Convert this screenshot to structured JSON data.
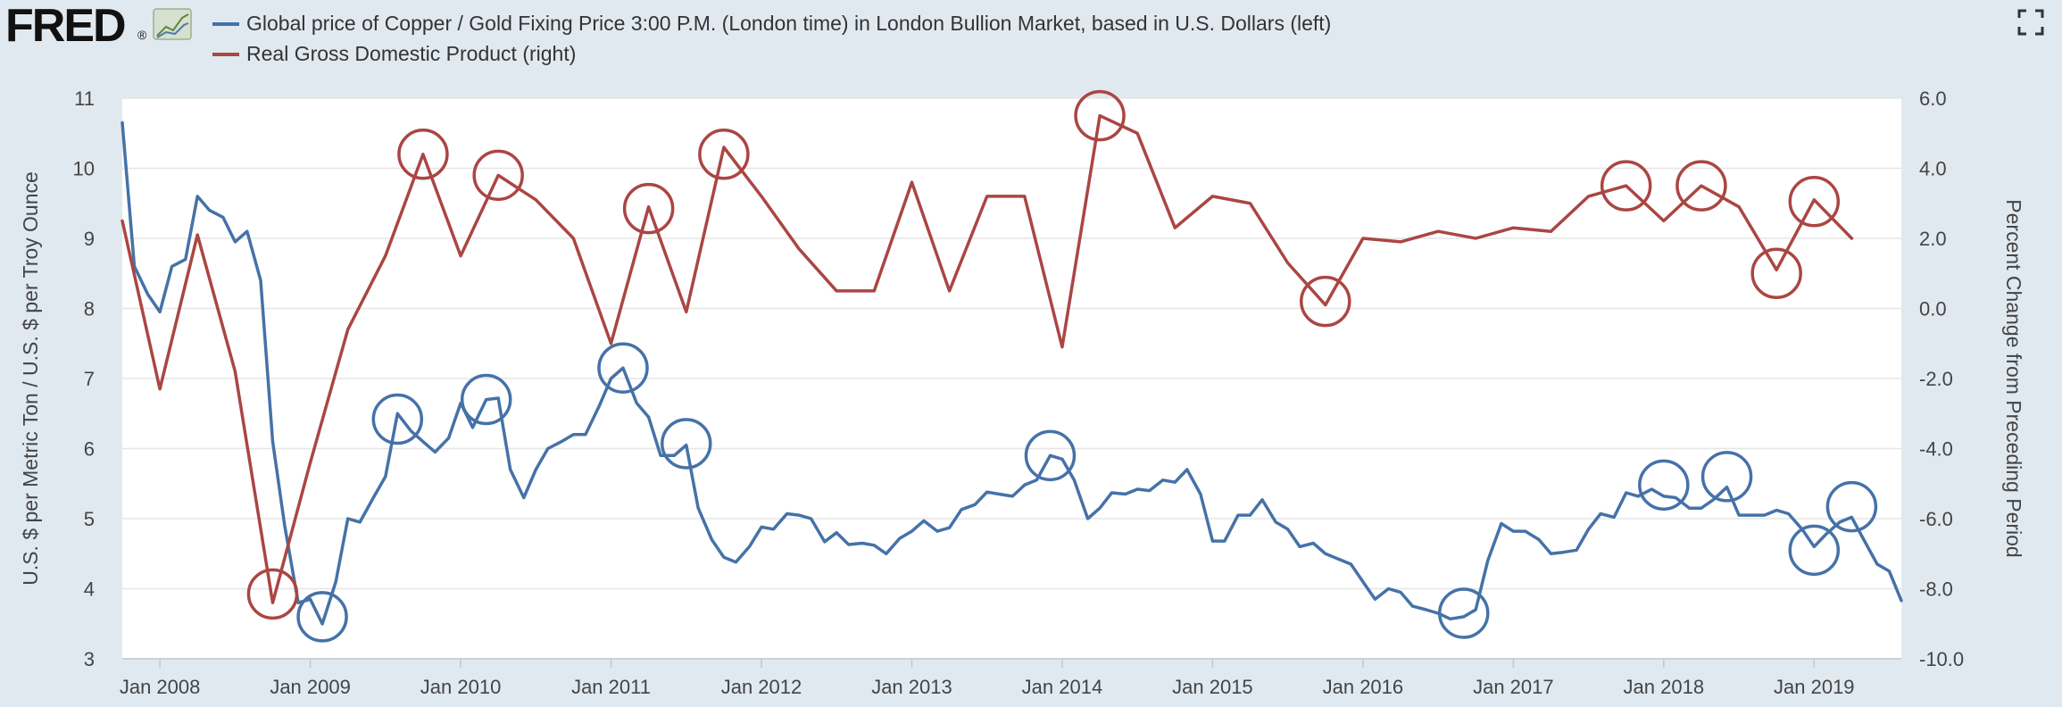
{
  "header": {
    "logo": "FRED",
    "logo_mark": "®"
  },
  "legend": [
    {
      "label": "Global price of Copper / Gold Fixing Price 3:00 P.M. (London time) in London Bullion Market, based in U.S. Dollars (left)",
      "color": "#4572a7"
    },
    {
      "label": "Real Gross Domestic Product (right)",
      "color": "#aa4643"
    }
  ],
  "chart_data": {
    "type": "line",
    "grid": true,
    "x_ticks": [
      "Jan 2008",
      "Jan 2009",
      "Jan 2010",
      "Jan 2011",
      "Jan 2012",
      "Jan 2013",
      "Jan 2014",
      "Jan 2015",
      "Jan 2016",
      "Jan 2017",
      "Jan 2018",
      "Jan 2019"
    ],
    "x_range": [
      2007.75,
      2019.58
    ],
    "left_axis": {
      "label": "U.S. $ per Metric Ton / U.S. $ per Troy Ounce",
      "range": [
        3,
        11
      ],
      "ticks": [
        "3",
        "4",
        "5",
        "6",
        "7",
        "8",
        "9",
        "10",
        "11"
      ]
    },
    "right_axis": {
      "label": "Percent Change from Preceding Period",
      "range": [
        -10,
        6
      ],
      "ticks": [
        "-10.0",
        "-8.0",
        "-6.0",
        "-4.0",
        "-2.0",
        "0.0",
        "2.0",
        "4.0",
        "6.0"
      ]
    },
    "series": [
      {
        "name": "Global price of Copper / Gold Fixing Price 3:00 P.M. (London time) in London Bullion Market, based in U.S. Dollars (left)",
        "axis": "left",
        "color": "#4572a7",
        "x": [
          2007.75,
          2007.83,
          2007.92,
          2008.0,
          2008.08,
          2008.17,
          2008.25,
          2008.33,
          2008.42,
          2008.5,
          2008.58,
          2008.67,
          2008.75,
          2008.83,
          2008.92,
          2009.0,
          2009.08,
          2009.17,
          2009.25,
          2009.33,
          2009.42,
          2009.5,
          2009.58,
          2009.67,
          2009.75,
          2009.83,
          2009.92,
          2010.0,
          2010.08,
          2010.17,
          2010.25,
          2010.33,
          2010.42,
          2010.5,
          2010.58,
          2010.67,
          2010.75,
          2010.83,
          2010.92,
          2011.0,
          2011.08,
          2011.17,
          2011.25,
          2011.33,
          2011.42,
          2011.5,
          2011.58,
          2011.67,
          2011.75,
          2011.83,
          2011.92,
          2012.0,
          2012.08,
          2012.17,
          2012.25,
          2012.33,
          2012.42,
          2012.5,
          2012.58,
          2012.67,
          2012.75,
          2012.83,
          2012.92,
          2013.0,
          2013.08,
          2013.17,
          2013.25,
          2013.33,
          2013.42,
          2013.5,
          2013.58,
          2013.67,
          2013.75,
          2013.83,
          2013.92,
          2014.0,
          2014.08,
          2014.17,
          2014.25,
          2014.33,
          2014.42,
          2014.5,
          2014.58,
          2014.67,
          2014.75,
          2014.83,
          2014.92,
          2015.0,
          2015.08,
          2015.17,
          2015.25,
          2015.33,
          2015.42,
          2015.5,
          2015.58,
          2015.67,
          2015.75,
          2015.83,
          2015.92,
          2016.0,
          2016.08,
          2016.17,
          2016.25,
          2016.33,
          2016.42,
          2016.5,
          2016.58,
          2016.67,
          2016.75,
          2016.83,
          2016.92,
          2017.0,
          2017.08,
          2017.17,
          2017.25,
          2017.33,
          2017.42,
          2017.5,
          2017.58,
          2017.67,
          2017.75,
          2017.83,
          2017.92,
          2018.0,
          2018.08,
          2018.17,
          2018.25,
          2018.33,
          2018.42,
          2018.5,
          2018.58,
          2018.67,
          2018.75,
          2018.83,
          2018.92,
          2019.0,
          2019.08,
          2019.17,
          2019.25,
          2019.33,
          2019.42,
          2019.5,
          2019.58
        ],
        "values": [
          10.65,
          8.6,
          8.2,
          7.95,
          8.6,
          8.7,
          9.6,
          9.4,
          9.3,
          8.95,
          9.1,
          8.4,
          6.1,
          4.9,
          3.8,
          3.85,
          3.5,
          4.1,
          5.0,
          4.95,
          5.3,
          5.6,
          6.5,
          6.25,
          6.1,
          5.95,
          6.15,
          6.65,
          6.3,
          6.7,
          6.72,
          5.7,
          5.3,
          5.7,
          6.0,
          6.1,
          6.2,
          6.2,
          6.6,
          7.0,
          7.15,
          6.65,
          6.45,
          5.9,
          5.9,
          6.05,
          5.15,
          4.7,
          4.45,
          4.38,
          4.6,
          4.88,
          4.85,
          5.07,
          5.05,
          5.0,
          4.67,
          4.8,
          4.63,
          4.65,
          4.62,
          4.5,
          4.72,
          4.82,
          4.97,
          4.82,
          4.87,
          5.13,
          5.2,
          5.38,
          5.35,
          5.32,
          5.48,
          5.55,
          5.9,
          5.85,
          5.55,
          5.0,
          5.15,
          5.37,
          5.35,
          5.42,
          5.4,
          5.55,
          5.52,
          5.7,
          5.35,
          4.68,
          4.68,
          5.05,
          5.05,
          5.27,
          4.95,
          4.85,
          4.6,
          4.65,
          4.5,
          4.43,
          4.35,
          4.1,
          3.85,
          4.0,
          3.95,
          3.75,
          3.7,
          3.65,
          3.57,
          3.6,
          3.7,
          4.4,
          4.93,
          4.82,
          4.82,
          4.7,
          4.5,
          4.52,
          4.55,
          4.85,
          5.07,
          5.02,
          5.37,
          5.32,
          5.42,
          5.32,
          5.3,
          5.15,
          5.15,
          5.27,
          5.45,
          5.05,
          5.05,
          5.05,
          5.12,
          5.07,
          4.85,
          4.6,
          4.78,
          4.95,
          5.02,
          4.7,
          4.35,
          4.25,
          3.83
        ]
      },
      {
        "name": "Real Gross Domestic Product (right)",
        "axis": "right",
        "color": "#aa4643",
        "x": [
          2007.75,
          2008.0,
          2008.25,
          2008.5,
          2008.75,
          2009.0,
          2009.25,
          2009.5,
          2009.75,
          2010.0,
          2010.25,
          2010.5,
          2010.75,
          2011.0,
          2011.25,
          2011.5,
          2011.75,
          2012.0,
          2012.25,
          2012.5,
          2012.75,
          2013.0,
          2013.25,
          2013.5,
          2013.75,
          2014.0,
          2014.25,
          2014.5,
          2014.75,
          2015.0,
          2015.25,
          2015.5,
          2015.75,
          2016.0,
          2016.25,
          2016.5,
          2016.75,
          2017.0,
          2017.25,
          2017.5,
          2017.75,
          2018.0,
          2018.25,
          2018.5,
          2018.75,
          2019.0,
          2019.25
        ],
        "values": [
          2.5,
          -2.3,
          2.1,
          -1.8,
          -8.4,
          -4.4,
          -0.6,
          1.5,
          4.4,
          1.5,
          3.8,
          3.1,
          2.0,
          -1.0,
          2.9,
          -0.1,
          4.6,
          3.2,
          1.7,
          0.5,
          0.5,
          3.6,
          0.5,
          3.2,
          3.2,
          -1.1,
          5.5,
          5.0,
          2.3,
          3.2,
          3.0,
          1.3,
          0.1,
          2.0,
          1.9,
          2.2,
          2.0,
          2.3,
          2.2,
          3.2,
          3.5,
          2.5,
          3.5,
          2.9,
          1.1,
          3.1,
          2.0
        ]
      }
    ],
    "circled_points": {
      "left": [
        [
          2009.08,
          3.6
        ],
        [
          2009.58,
          6.42
        ],
        [
          2010.17,
          6.7
        ],
        [
          2011.08,
          7.15
        ],
        [
          2011.5,
          6.07
        ],
        [
          2013.92,
          5.9
        ],
        [
          2016.67,
          3.65
        ],
        [
          2018.0,
          5.48
        ],
        [
          2018.42,
          5.6
        ],
        [
          2019.0,
          4.55
        ],
        [
          2019.25,
          5.17
        ]
      ],
      "right": [
        [
          2008.75,
          -8.15
        ],
        [
          2009.75,
          4.4
        ],
        [
          2010.25,
          3.8
        ],
        [
          2011.25,
          2.85
        ],
        [
          2011.75,
          4.4
        ],
        [
          2014.25,
          5.5
        ],
        [
          2015.75,
          0.2
        ],
        [
          2017.75,
          3.5
        ],
        [
          2018.25,
          3.5
        ],
        [
          2018.75,
          1.0
        ],
        [
          2019.0,
          3.05
        ]
      ]
    }
  }
}
